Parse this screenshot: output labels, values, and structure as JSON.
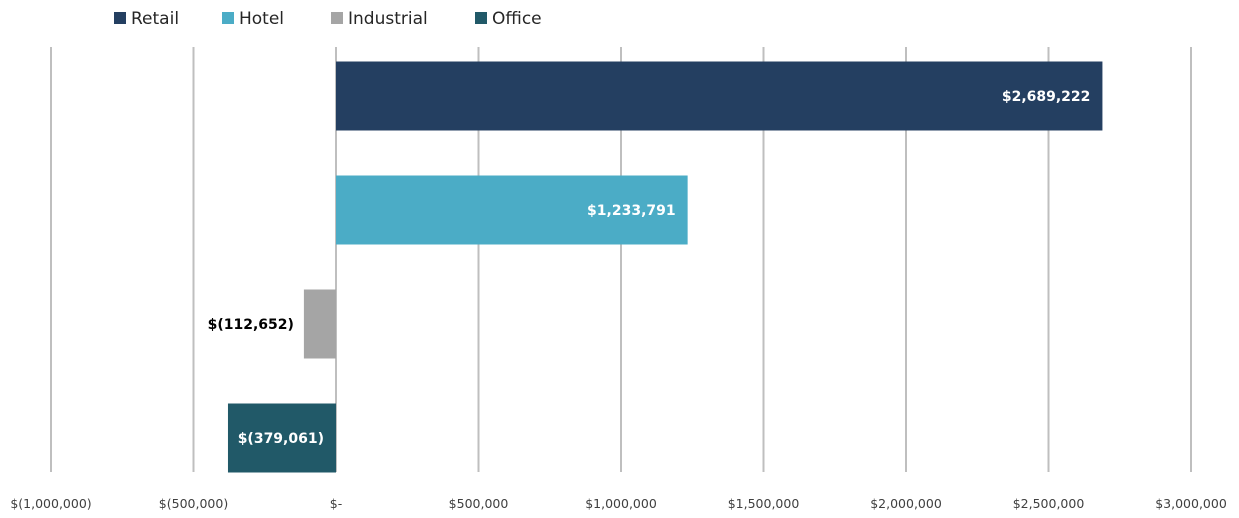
{
  "chart_data": {
    "type": "bar",
    "orientation": "horizontal",
    "categories": [
      "Retail",
      "Hotel",
      "Industrial",
      "Office"
    ],
    "series": [
      {
        "name": "Retail",
        "value": 2689222,
        "label": "$2,689,222",
        "color": "#243f61",
        "label_color": "#ffffff"
      },
      {
        "name": "Hotel",
        "value": 1233791,
        "label": "$1,233,791",
        "color": "#4bacc6",
        "label_color": "#ffffff"
      },
      {
        "name": "Industrial",
        "value": -112652,
        "label": "$(112,652)",
        "color": "#a5a5a5",
        "label_color": "#000000"
      },
      {
        "name": "Office",
        "value": -379061,
        "label": "$(379,061)",
        "color": "#215968",
        "label_color": "#ffffff"
      }
    ],
    "xlim": [
      -1000000,
      3000000
    ],
    "x_ticks": [
      {
        "value": -1000000,
        "label": "$(1,000,000)"
      },
      {
        "value": -500000,
        "label": "$(500,000)"
      },
      {
        "value": 0,
        "label": "$-"
      },
      {
        "value": 500000,
        "label": "$500,000"
      },
      {
        "value": 1000000,
        "label": "$1,000,000"
      },
      {
        "value": 1500000,
        "label": "$1,500,000"
      },
      {
        "value": 2000000,
        "label": "$2,000,000"
      },
      {
        "value": 2500000,
        "label": "$2,500,000"
      },
      {
        "value": 3000000,
        "label": "$3,000,000"
      }
    ],
    "grid": "vertical",
    "grid_color": "#bfbfbf",
    "legend_position": "top-left",
    "title": "",
    "xlabel": "",
    "ylabel": ""
  }
}
